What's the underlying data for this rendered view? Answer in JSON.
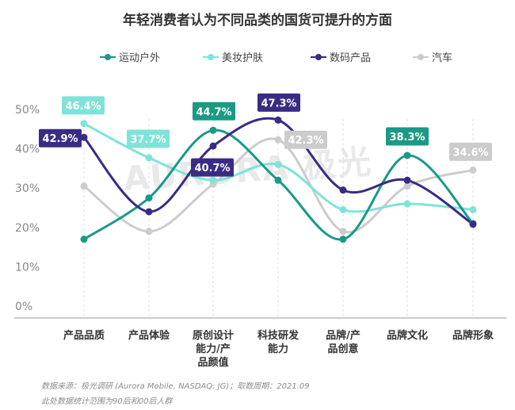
{
  "chart_data": {
    "type": "line",
    "title": "年轻消费者认为不同品类的国货可提升的方面",
    "categories": [
      "产品品质",
      "产品体验",
      "原创设计能力/产品颜值",
      "科技研发能力",
      "品牌/产品创意",
      "品牌文化",
      "品牌形象"
    ],
    "category_lines": [
      [
        "产品品质"
      ],
      [
        "产品体验"
      ],
      [
        "原创设计",
        "能力/产",
        "品颜值"
      ],
      [
        "科技研发",
        "能力"
      ],
      [
        "品牌/产",
        "品创意"
      ],
      [
        "品牌文化"
      ],
      [
        "品牌形象"
      ]
    ],
    "series": [
      {
        "name": "运动户外",
        "color": "#1a9a84",
        "values": [
          17.0,
          27.5,
          44.7,
          32.0,
          17.0,
          38.3,
          21.0
        ]
      },
      {
        "name": "美妆护肤",
        "color": "#7fe3d8",
        "values": [
          46.4,
          37.7,
          32.0,
          36.0,
          24.5,
          26.0,
          24.5
        ]
      },
      {
        "name": "数码产品",
        "color": "#3a2b84",
        "values": [
          42.9,
          24.0,
          40.7,
          47.3,
          29.5,
          32.0,
          20.8
        ]
      },
      {
        "name": "汽车",
        "color": "#cccccc",
        "values": [
          30.5,
          19.0,
          31.0,
          42.3,
          19.0,
          30.5,
          34.6
        ]
      }
    ],
    "data_labels": [
      {
        "series": 1,
        "index": 0,
        "text": "46.4%"
      },
      {
        "series": 2,
        "index": 0,
        "text": "42.9%"
      },
      {
        "series": 1,
        "index": 1,
        "text": "37.7%"
      },
      {
        "series": 0,
        "index": 2,
        "text": "44.7%"
      },
      {
        "series": 2,
        "index": 2,
        "text": "40.7%"
      },
      {
        "series": 2,
        "index": 3,
        "text": "47.3%"
      },
      {
        "series": 3,
        "index": 3,
        "text": "42.3%"
      },
      {
        "series": 0,
        "index": 5,
        "text": "38.3%"
      },
      {
        "series": 3,
        "index": 6,
        "text": "34.6%"
      }
    ],
    "y_ticks": [
      "0%",
      "10%",
      "20%",
      "30%",
      "40%",
      "50%"
    ],
    "ylim": [
      0,
      50
    ],
    "grid": false,
    "legend_position": "top",
    "watermark": "AURORA 极光"
  },
  "footer": {
    "source": "数据来源：极光调研 (Aurora Mobile, NASDAQ: JG)；取数周期：2021.09",
    "note": "此处数据统计范围为90后和00后人群"
  }
}
